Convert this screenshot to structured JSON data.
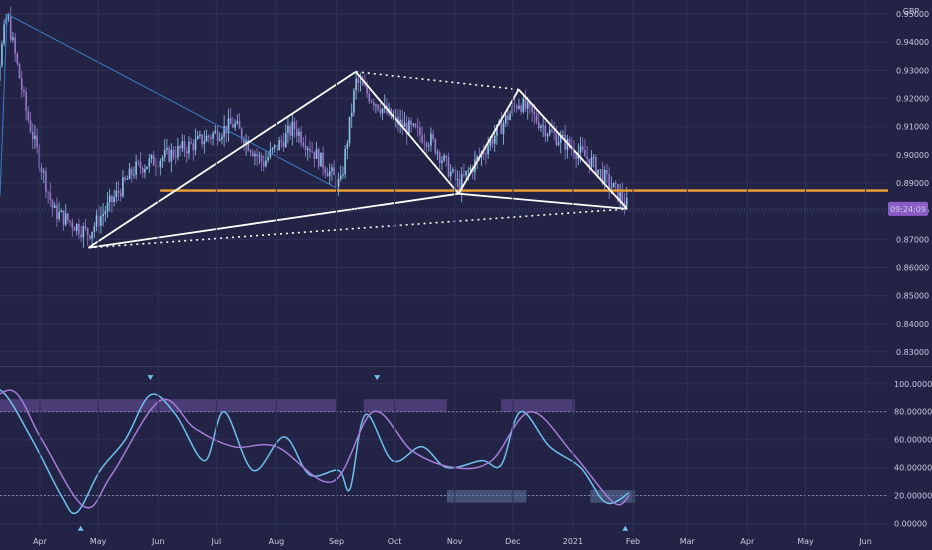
{
  "chart_data": [
    {
      "type": "candlestick",
      "currency": "GBP",
      "y_ticks": [
        "0.95000",
        "0.94000",
        "0.93000",
        "0.92000",
        "0.91000",
        "0.90000",
        "0.89000",
        "0.88000",
        "0.87000",
        "0.86000",
        "0.85000",
        "0.84000",
        "0.83000"
      ],
      "ylim": [
        0.825,
        0.955
      ],
      "x_ticks": [
        "Apr",
        "May",
        "Jun",
        "Jul",
        "Aug",
        "Sep",
        "Oct",
        "Nov",
        "Dec",
        "2021",
        "Feb",
        "Mar",
        "Apr",
        "May",
        "Jun"
      ],
      "price_label": "09:24:09",
      "last_price": 0.8808,
      "support_level": 0.8873,
      "pattern_points": [
        {
          "date": "2020-04-26",
          "price": 0.867
        },
        {
          "date": "2020-06-02",
          "price": 0.8857
        },
        {
          "date": "2020-09-11",
          "price": 0.9295
        },
        {
          "date": "2020-11-03",
          "price": 0.8862
        },
        {
          "date": "2020-12-04",
          "price": 0.9232
        },
        {
          "date": "2021-01-29",
          "price": 0.8808
        }
      ],
      "price_path": [
        {
          "date": "2020-03-01",
          "price": 0.889
        },
        {
          "date": "2020-03-15",
          "price": 0.95
        },
        {
          "date": "2020-03-25",
          "price": 0.915
        },
        {
          "date": "2020-04-08",
          "price": 0.88
        },
        {
          "date": "2020-04-26",
          "price": 0.872
        },
        {
          "date": "2020-05-20",
          "price": 0.895
        },
        {
          "date": "2020-06-20",
          "price": 0.904
        },
        {
          "date": "2020-07-10",
          "price": 0.911
        },
        {
          "date": "2020-07-25",
          "price": 0.897
        },
        {
          "date": "2020-08-10",
          "price": 0.91
        },
        {
          "date": "2020-09-03",
          "price": 0.889
        },
        {
          "date": "2020-09-11",
          "price": 0.926
        },
        {
          "date": "2020-10-01",
          "price": 0.912
        },
        {
          "date": "2020-10-20",
          "price": 0.905
        },
        {
          "date": "2020-11-03",
          "price": 0.889
        },
        {
          "date": "2020-12-04",
          "price": 0.919
        },
        {
          "date": "2020-12-20",
          "price": 0.908
        },
        {
          "date": "2021-01-10",
          "price": 0.898
        },
        {
          "date": "2021-01-29",
          "price": 0.882
        }
      ]
    },
    {
      "type": "line",
      "y_ticks": [
        "100.00000",
        "80.00000",
        "60.00000",
        "40.00000",
        "20.00000",
        "0.00000"
      ],
      "ylim": [
        -6,
        112
      ],
      "levels": [
        80,
        20
      ],
      "series": [
        {
          "values": [
            {
              "date": "2020-03-01",
              "value": 85
            },
            {
              "date": "2020-03-12",
              "value": 95
            },
            {
              "date": "2020-03-28",
              "value": 60
            },
            {
              "date": "2020-04-12",
              "value": 20
            },
            {
              "date": "2020-04-20",
              "value": 8
            },
            {
              "date": "2020-05-02",
              "value": 38
            },
            {
              "date": "2020-05-15",
              "value": 60
            },
            {
              "date": "2020-05-28",
              "value": 92
            },
            {
              "date": "2020-06-10",
              "value": 78
            },
            {
              "date": "2020-06-25",
              "value": 45
            },
            {
              "date": "2020-07-05",
              "value": 80
            },
            {
              "date": "2020-07-20",
              "value": 38
            },
            {
              "date": "2020-08-05",
              "value": 62
            },
            {
              "date": "2020-08-18",
              "value": 35
            },
            {
              "date": "2020-09-02",
              "value": 38
            },
            {
              "date": "2020-09-08",
              "value": 25
            },
            {
              "date": "2020-09-16",
              "value": 78
            },
            {
              "date": "2020-09-30",
              "value": 45
            },
            {
              "date": "2020-10-15",
              "value": 55
            },
            {
              "date": "2020-10-28",
              "value": 40
            },
            {
              "date": "2020-11-15",
              "value": 45
            },
            {
              "date": "2020-11-25",
              "value": 42
            },
            {
              "date": "2020-12-05",
              "value": 80
            },
            {
              "date": "2020-12-20",
              "value": 55
            },
            {
              "date": "2021-01-05",
              "value": 40
            },
            {
              "date": "2021-01-18",
              "value": 15
            },
            {
              "date": "2021-01-30",
              "value": 22
            }
          ]
        },
        {
          "values": [
            {
              "date": "2020-03-01",
              "value": 80
            },
            {
              "date": "2020-03-18",
              "value": 95
            },
            {
              "date": "2020-04-02",
              "value": 60
            },
            {
              "date": "2020-04-24",
              "value": 12
            },
            {
              "date": "2020-05-08",
              "value": 35
            },
            {
              "date": "2020-06-02",
              "value": 88
            },
            {
              "date": "2020-06-20",
              "value": 68
            },
            {
              "date": "2020-07-10",
              "value": 55
            },
            {
              "date": "2020-08-01",
              "value": 55
            },
            {
              "date": "2020-08-30",
              "value": 30
            },
            {
              "date": "2020-09-20",
              "value": 80
            },
            {
              "date": "2020-10-10",
              "value": 52
            },
            {
              "date": "2020-11-01",
              "value": 40
            },
            {
              "date": "2020-11-20",
              "value": 45
            },
            {
              "date": "2020-12-10",
              "value": 80
            },
            {
              "date": "2021-01-01",
              "value": 50
            },
            {
              "date": "2021-01-22",
              "value": 15
            },
            {
              "date": "2021-01-30",
              "value": 20
            }
          ]
        }
      ]
    }
  ],
  "colors": {
    "background": "#232445",
    "grid": "#2e3058",
    "candle_up": "#8fc4ea",
    "candle_down": "#9a79cf",
    "pattern": "#ffffff",
    "support": "#f0a030",
    "trendline": "#3a7fc4",
    "price_label_bg": "#8a5cc8",
    "fast_line": "#6fc0ef",
    "slow_line": "#a57cd8"
  }
}
